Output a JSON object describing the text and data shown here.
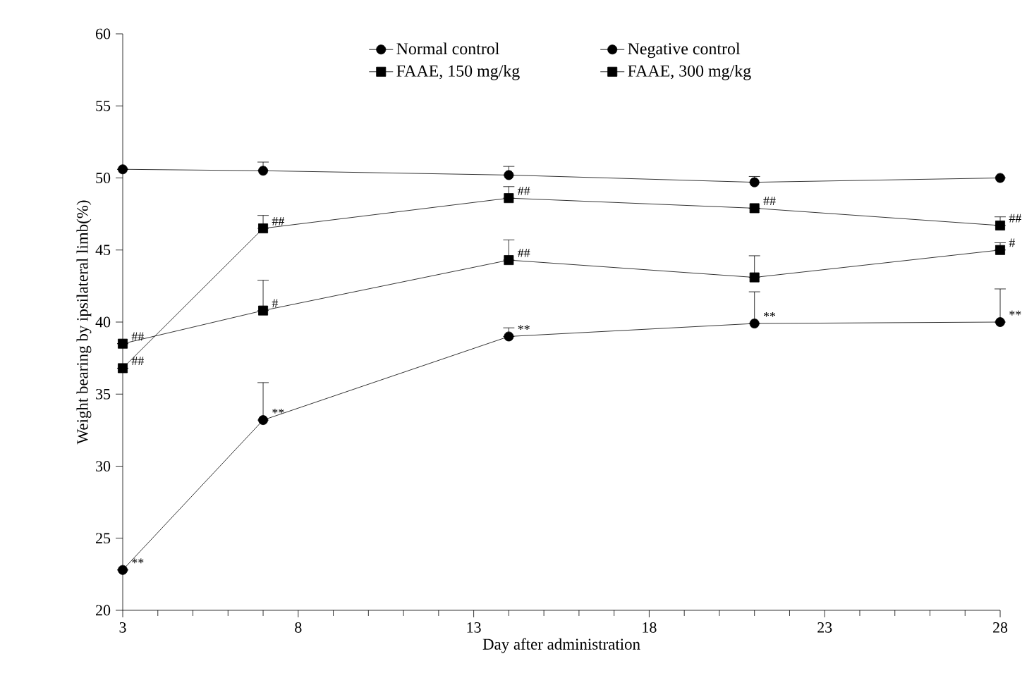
{
  "chart_data": {
    "type": "line",
    "xlabel": "Day after administration",
    "ylabel": "Weight bearing by ipsilateral limb(%)",
    "x": [
      3,
      7,
      14,
      21,
      28
    ],
    "series": [
      {
        "name": "Normal control",
        "color": "#000000",
        "marker": "circle",
        "values": [
          50.6,
          50.5,
          50.2,
          49.7,
          50.0
        ],
        "errors": [
          null,
          [
            50.5,
            51.1
          ],
          [
            50.2,
            50.8
          ],
          [
            49.7,
            50.1
          ],
          null
        ]
      },
      {
        "name": "Negative control",
        "color": "#000000",
        "marker": "circle",
        "values": [
          22.8,
          33.2,
          39.0,
          39.9,
          40.0
        ],
        "errors": [
          null,
          [
            33.2,
            35.8
          ],
          [
            39.0,
            39.6
          ],
          [
            39.9,
            42.1
          ],
          [
            40.0,
            42.3
          ]
        ]
      },
      {
        "name": "FAAE, 150 mg/kg",
        "color": "#000000",
        "marker": "square",
        "values": [
          38.5,
          40.8,
          44.3,
          43.1,
          45.0
        ],
        "errors": [
          null,
          [
            40.8,
            42.9
          ],
          [
            44.3,
            45.7
          ],
          [
            43.1,
            44.6
          ],
          [
            45.0,
            45.5
          ]
        ]
      },
      {
        "name": "FAAE, 300 mg/kg",
        "color": "#000000",
        "marker": "square",
        "values": [
          36.8,
          46.5,
          48.6,
          47.9,
          46.7
        ],
        "errors": [
          null,
          [
            46.5,
            47.4
          ],
          [
            48.6,
            49.4
          ],
          null,
          [
            46.7,
            47.3
          ]
        ]
      }
    ],
    "annotations": [
      {
        "text": "**",
        "x": 3,
        "y": 22.8
      },
      {
        "text": "**",
        "x": 7,
        "y": 33.2
      },
      {
        "text": "**",
        "x": 14,
        "y": 39.0
      },
      {
        "text": "**",
        "x": 21,
        "y": 39.9
      },
      {
        "text": "**",
        "x": 28,
        "y": 40.0
      },
      {
        "text": "##",
        "x": 3,
        "y": 38.5
      },
      {
        "text": "#",
        "x": 7,
        "y": 40.8
      },
      {
        "text": "##",
        "x": 14,
        "y": 44.3
      },
      {
        "text": "#",
        "x": 28,
        "y": 45.0
      },
      {
        "text": "##",
        "x": 3,
        "y": 36.8
      },
      {
        "text": "##",
        "x": 7,
        "y": 46.5
      },
      {
        "text": "##",
        "x": 14,
        "y": 48.6
      },
      {
        "text": "##",
        "x": 21,
        "y": 47.9
      },
      {
        "text": "##",
        "x": 28,
        "y": 46.7
      }
    ],
    "xlim": [
      3,
      28
    ],
    "xticks": [
      3,
      8,
      13,
      18,
      23,
      28
    ],
    "ylim": [
      20,
      60
    ],
    "yticks": [
      20,
      25,
      30,
      35,
      40,
      45,
      50,
      55,
      60
    ],
    "grid": false,
    "legend": "top",
    "line_style": "solid"
  }
}
